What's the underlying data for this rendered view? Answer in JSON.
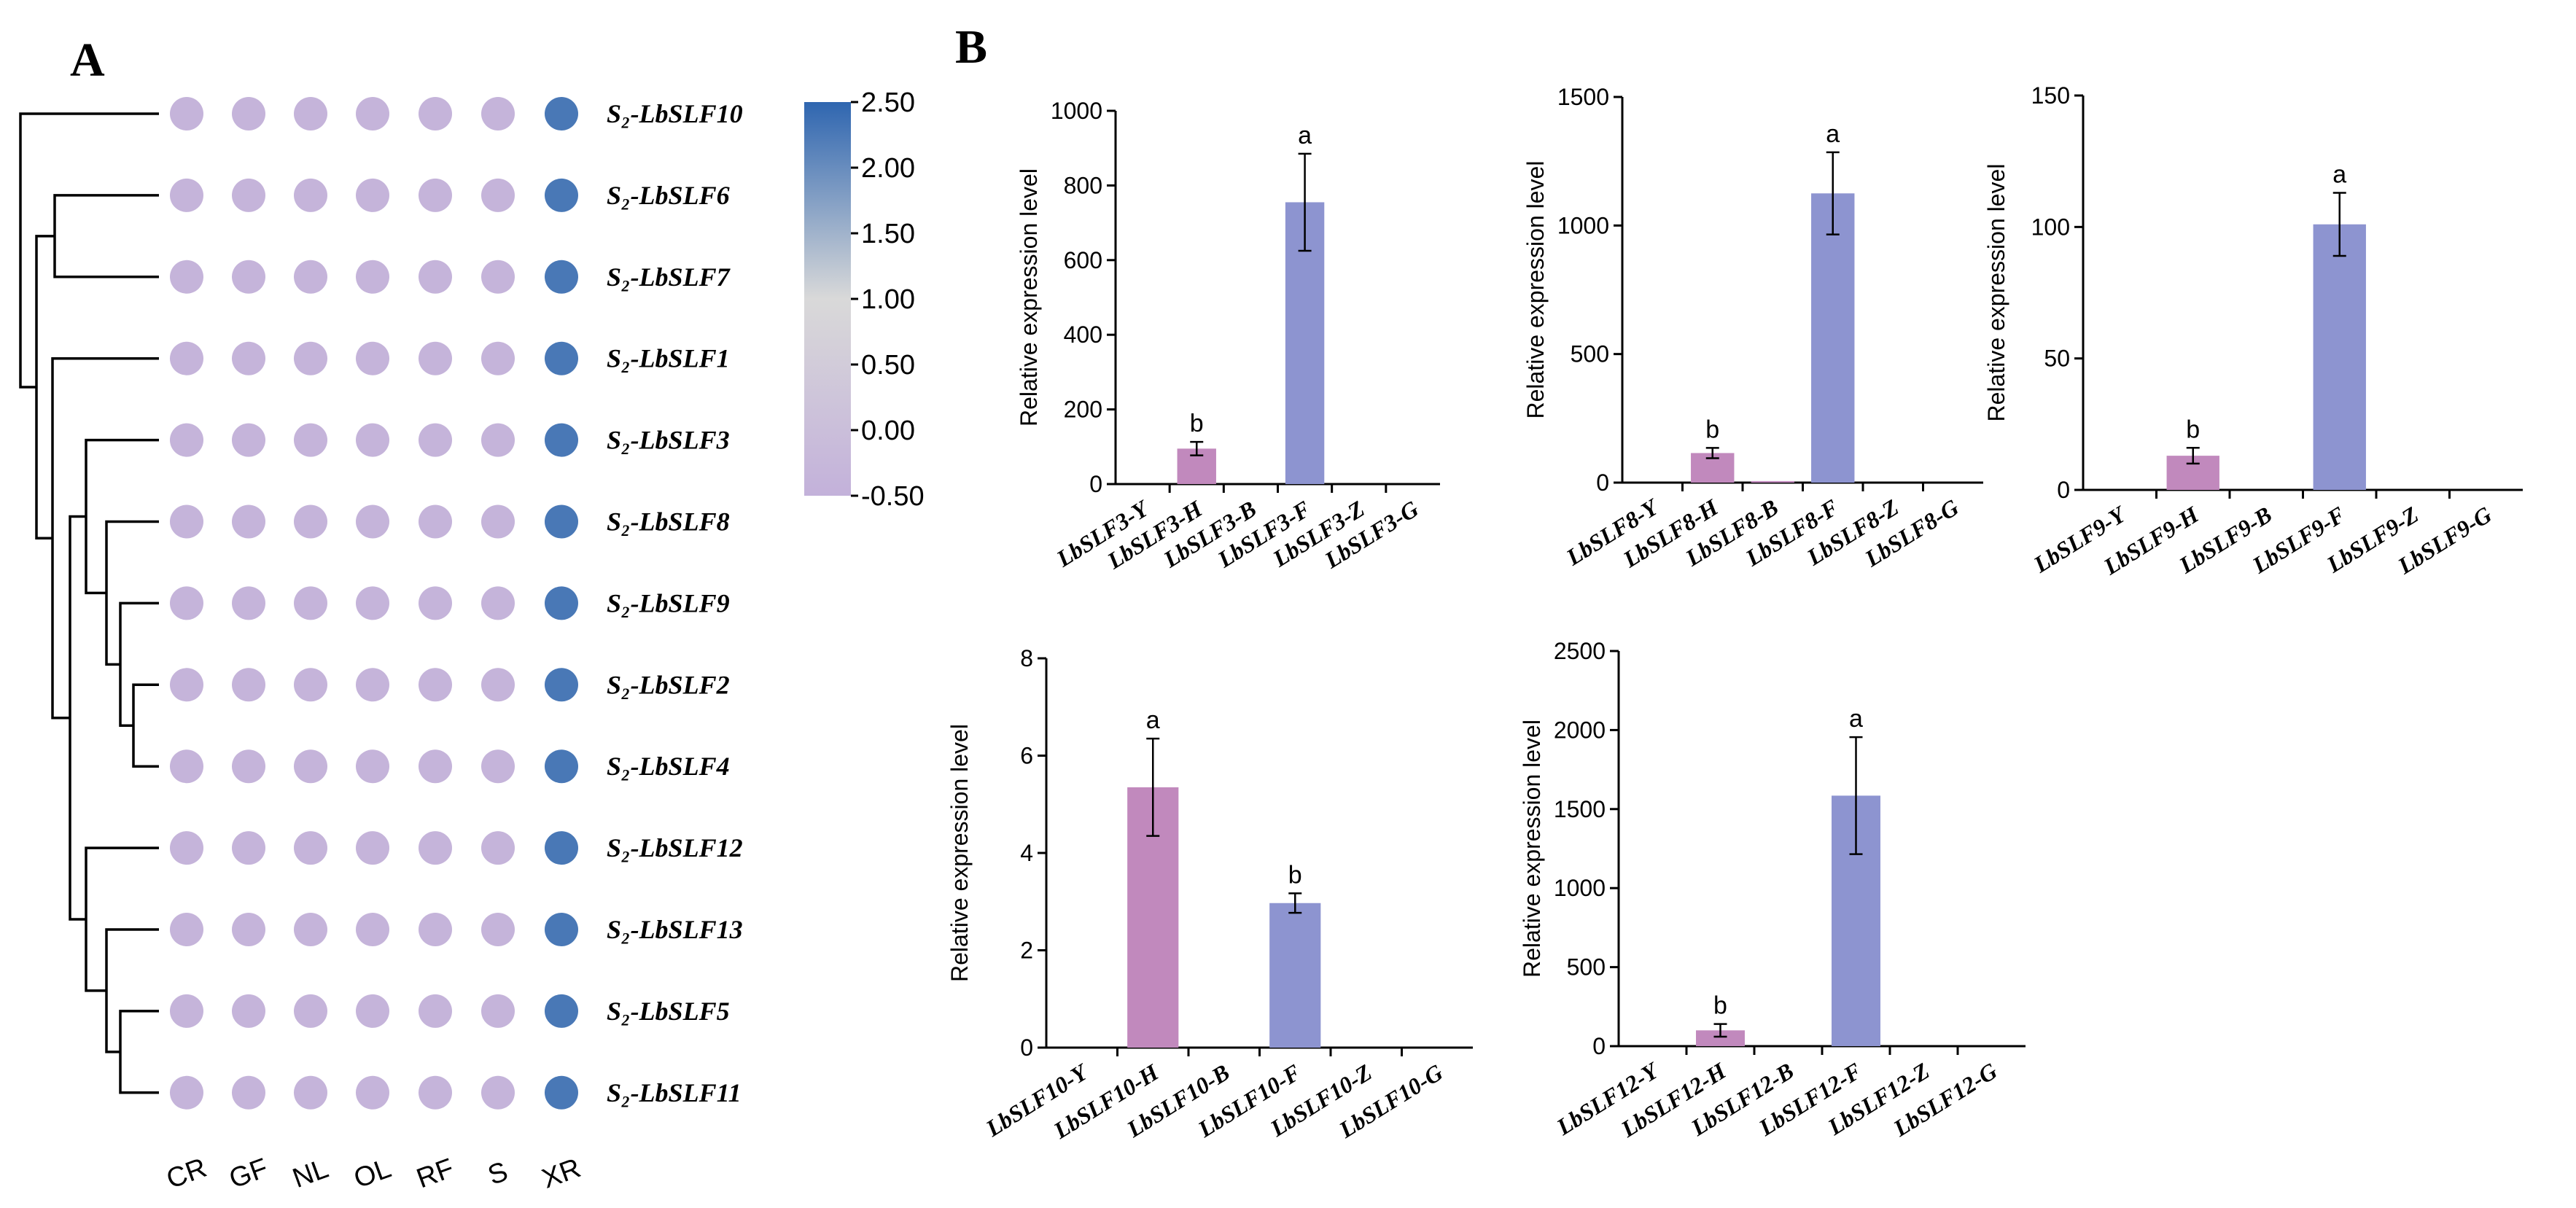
{
  "panel_a": {
    "letter": "A",
    "rows": [
      "S₂-LbSLF10",
      "S₂-LbSLF6",
      "S₂-LbSLF7",
      "S₂-LbSLF1",
      "S₂-LbSLF3",
      "S₂-LbSLF8",
      "S₂-LbSLF9",
      "S₂-LbSLF2",
      "S₂-LbSLF4",
      "S₂-LbSLF12",
      "S₂-LbSLF13",
      "S₂-LbSLF5",
      "S₂-LbSLF11"
    ],
    "columns": [
      "CR",
      "GF",
      "NL",
      "OL",
      "RF",
      "S",
      "XR"
    ],
    "colorbar_ticks": [
      "2.50",
      "2.00",
      "1.50",
      "1.00",
      "0.50",
      "0.00",
      "-0.50"
    ],
    "colors": {
      "low": "#c3b1da",
      "mid": "#d9d9d9",
      "high": "#2f66b0"
    }
  },
  "panel_b": {
    "letter": "B"
  },
  "chart_data": [
    {
      "type": "heatmap",
      "rows": [
        "S₂-LbSLF10",
        "S₂-LbSLF6",
        "S₂-LbSLF7",
        "S₂-LbSLF1",
        "S₂-LbSLF3",
        "S₂-LbSLF8",
        "S₂-LbSLF9",
        "S₂-LbSLF2",
        "S₂-LbSLF4",
        "S₂-LbSLF12",
        "S₂-LbSLF13",
        "S₂-LbSLF5",
        "S₂-LbSLF11"
      ],
      "columns": [
        "CR",
        "GF",
        "NL",
        "OL",
        "RF",
        "S",
        "XR"
      ],
      "values": [
        [
          -0.38,
          -0.38,
          -0.38,
          -0.38,
          -0.38,
          -0.38,
          2.27
        ],
        [
          -0.38,
          -0.38,
          -0.38,
          -0.38,
          -0.38,
          -0.38,
          2.27
        ],
        [
          -0.38,
          -0.38,
          -0.38,
          -0.38,
          -0.38,
          -0.38,
          2.27
        ],
        [
          -0.38,
          -0.38,
          -0.38,
          -0.38,
          -0.38,
          -0.38,
          2.27
        ],
        [
          -0.38,
          -0.38,
          -0.38,
          -0.38,
          -0.38,
          -0.38,
          2.27
        ],
        [
          -0.38,
          -0.38,
          -0.38,
          -0.38,
          -0.38,
          -0.38,
          2.27
        ],
        [
          -0.38,
          -0.38,
          -0.38,
          -0.38,
          -0.38,
          -0.38,
          2.27
        ],
        [
          -0.38,
          -0.38,
          -0.38,
          -0.38,
          -0.38,
          -0.38,
          2.27
        ],
        [
          -0.38,
          -0.38,
          -0.38,
          -0.38,
          -0.38,
          -0.38,
          2.27
        ],
        [
          -0.38,
          -0.38,
          -0.38,
          -0.38,
          -0.38,
          -0.38,
          2.27
        ],
        [
          -0.38,
          -0.38,
          -0.38,
          -0.38,
          -0.38,
          -0.38,
          2.27
        ],
        [
          -0.38,
          -0.38,
          -0.38,
          -0.38,
          -0.38,
          -0.38,
          2.27
        ],
        [
          -0.38,
          -0.38,
          -0.38,
          -0.38,
          -0.38,
          -0.38,
          2.27
        ]
      ],
      "colorbar_range": [
        -0.5,
        2.5
      ],
      "legend_placement": "right"
    },
    {
      "type": "bar",
      "ylabel": "Relative expression level",
      "ylim": [
        0,
        1000
      ],
      "yticks": [
        0,
        200,
        400,
        600,
        800,
        1000
      ],
      "categories": [
        "LbSLF3-Y",
        "LbSLF3-H",
        "LbSLF3-B",
        "LbSLF3-F",
        "LbSLF3-Z",
        "LbSLF3-G"
      ],
      "values": [
        0,
        95,
        0,
        755,
        0,
        0
      ],
      "errors": [
        0,
        18,
        0,
        130,
        0,
        0
      ],
      "labels": [
        "",
        "b",
        "",
        "a",
        "",
        ""
      ],
      "bar_colors": [
        "#c189bd",
        "#c189bd",
        "#c189bd",
        "#8d94d0",
        "#8d94d0",
        "#8d94d0"
      ]
    },
    {
      "type": "bar",
      "ylabel": "Relative expression level",
      "ylim": [
        0,
        1500
      ],
      "yticks": [
        0,
        500,
        1000,
        1500
      ],
      "categories": [
        "LbSLF8-Y",
        "LbSLF8-H",
        "LbSLF8-B",
        "LbSLF8-F",
        "LbSLF8-Z",
        "LbSLF8-G"
      ],
      "values": [
        0,
        115,
        6,
        1125,
        0,
        0
      ],
      "errors": [
        0,
        20,
        0,
        160,
        0,
        0
      ],
      "labels": [
        "",
        "b",
        "",
        "a",
        "",
        ""
      ],
      "bar_colors": [
        "#c189bd",
        "#c189bd",
        "#c189bd",
        "#8d94d0",
        "#8d94d0",
        "#8d94d0"
      ]
    },
    {
      "type": "bar",
      "ylabel": "Relative expression level",
      "ylim": [
        0,
        150
      ],
      "yticks": [
        0,
        50,
        100,
        150
      ],
      "categories": [
        "LbSLF9-Y",
        "LbSLF9-H",
        "LbSLF9-B",
        "LbSLF9-F",
        "LbSLF9-Z",
        "LbSLF9-G"
      ],
      "values": [
        0,
        13,
        0,
        101,
        0,
        0
      ],
      "errors": [
        0,
        3,
        0,
        12,
        0,
        0
      ],
      "labels": [
        "",
        "b",
        "",
        "a",
        "",
        ""
      ],
      "bar_colors": [
        "#c189bd",
        "#c189bd",
        "#c189bd",
        "#8d94d0",
        "#8d94d0",
        "#8d94d0"
      ]
    },
    {
      "type": "bar",
      "ylabel": "Relative expression level",
      "ylim": [
        0,
        8
      ],
      "yticks": [
        0,
        2,
        4,
        6,
        8
      ],
      "categories": [
        "LbSLF10-Y",
        "LbSLF10-H",
        "LbSLF10-B",
        "LbSLF10-F",
        "LbSLF10-Z",
        "LbSLF10-G"
      ],
      "values": [
        0,
        5.35,
        0,
        2.97,
        0,
        0
      ],
      "errors": [
        0,
        1.0,
        0,
        0.2,
        0,
        0
      ],
      "labels": [
        "",
        "a",
        "",
        "b",
        "",
        ""
      ],
      "bar_colors": [
        "#c189bd",
        "#c189bd",
        "#c189bd",
        "#8d94d0",
        "#8d94d0",
        "#8d94d0"
      ]
    },
    {
      "type": "bar",
      "ylabel": "Relative expression level",
      "ylim": [
        0,
        2500
      ],
      "yticks": [
        0,
        500,
        1000,
        1500,
        2000,
        2500
      ],
      "categories": [
        "LbSLF12-Y",
        "LbSLF12-H",
        "LbSLF12-B",
        "LbSLF12-F",
        "LbSLF12-Z",
        "LbSLF12-G"
      ],
      "values": [
        0,
        100,
        0,
        1585,
        0,
        0
      ],
      "errors": [
        0,
        40,
        0,
        370,
        0,
        0
      ],
      "labels": [
        "",
        "b",
        "",
        "a",
        "",
        ""
      ],
      "bar_colors": [
        "#c189bd",
        "#c189bd",
        "#c189bd",
        "#8d94d0",
        "#8d94d0",
        "#8d94d0"
      ]
    }
  ]
}
